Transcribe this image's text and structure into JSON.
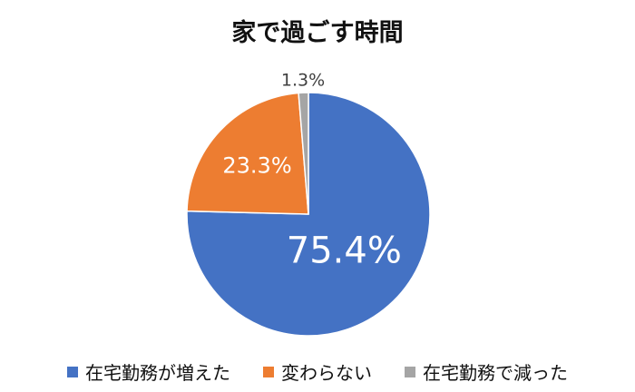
{
  "chart_data": {
    "type": "pie",
    "title": "家で過ごす時間",
    "categories": [
      "在宅勤務が増えた",
      "変わらない",
      "在宅勤務で減った"
    ],
    "values": [
      75.4,
      23.3,
      1.3
    ],
    "value_labels": [
      "75.4%",
      "23.3%",
      "1.3%"
    ],
    "colors": [
      "#4472C4",
      "#ED7D31",
      "#A5A5A5"
    ],
    "legend_position": "bottom",
    "start_angle": "12 o'clock",
    "direction": "clockwise"
  }
}
